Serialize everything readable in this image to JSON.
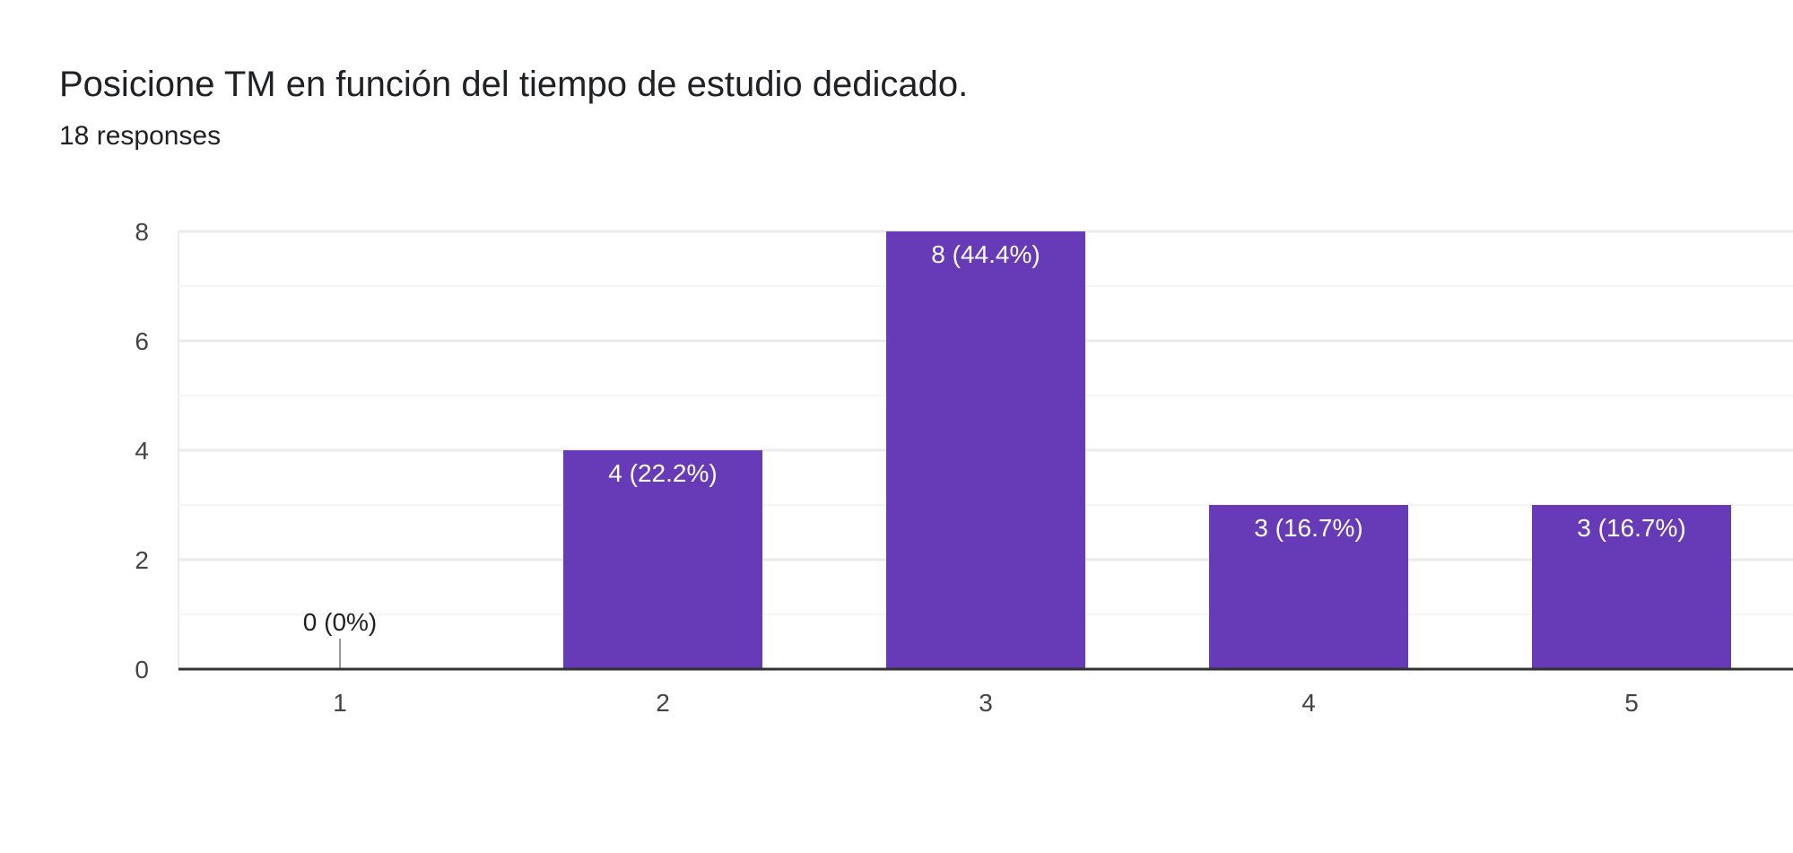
{
  "header": {
    "title": "Posicione TM en función del tiempo de estudio dedicado.",
    "responses": "18 responses"
  },
  "colors": {
    "bar": "#673ab7",
    "grid_major": "#ebebeb",
    "grid_minor": "#f5f5f5",
    "axis": "#333333",
    "label_inside": "#ffffff",
    "label_outside": "#202124"
  },
  "chart_data": {
    "type": "bar",
    "categories": [
      "1",
      "2",
      "3",
      "4",
      "5"
    ],
    "values": [
      0,
      4,
      8,
      3,
      3
    ],
    "data_labels": [
      "0 (0%)",
      "4 (22.2%)",
      "8 (44.4%)",
      "3 (16.7%)",
      "3 (16.7%)"
    ],
    "ylim": [
      0,
      8
    ],
    "yticks": [
      0,
      2,
      4,
      6,
      8
    ],
    "grid": true,
    "xlabel": "",
    "ylabel": ""
  }
}
